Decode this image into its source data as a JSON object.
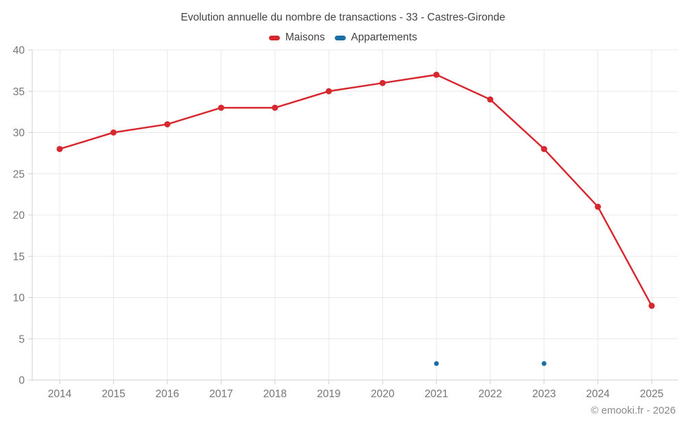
{
  "footer": {
    "copyright": "© emooki.fr - 2026"
  },
  "chart_data": {
    "type": "line",
    "title": "Evolution annuelle du nombre de transactions - 33 - Castres-Gironde",
    "xlabel": "",
    "ylabel": "",
    "categories": [
      "2014",
      "2015",
      "2016",
      "2017",
      "2018",
      "2019",
      "2020",
      "2021",
      "2022",
      "2023",
      "2024",
      "2025"
    ],
    "series": [
      {
        "name": "Maisons",
        "color": "#d6282e",
        "style": "line-with-points",
        "values": [
          28,
          30,
          31,
          33,
          33,
          35,
          36,
          37,
          34,
          28,
          21,
          9
        ]
      },
      {
        "name": "Appartements",
        "color": "#1c6ea4",
        "style": "points-only",
        "values": [
          null,
          null,
          null,
          null,
          null,
          null,
          null,
          2,
          null,
          2,
          null,
          null
        ]
      }
    ],
    "ylim": [
      0,
      40
    ],
    "ytick_step": 5,
    "grid": true,
    "legend_position": "top",
    "colors": {
      "grid_line": "#e8e8e8",
      "axis_line": "#cfcfcf",
      "tick_label": "#757575"
    }
  }
}
